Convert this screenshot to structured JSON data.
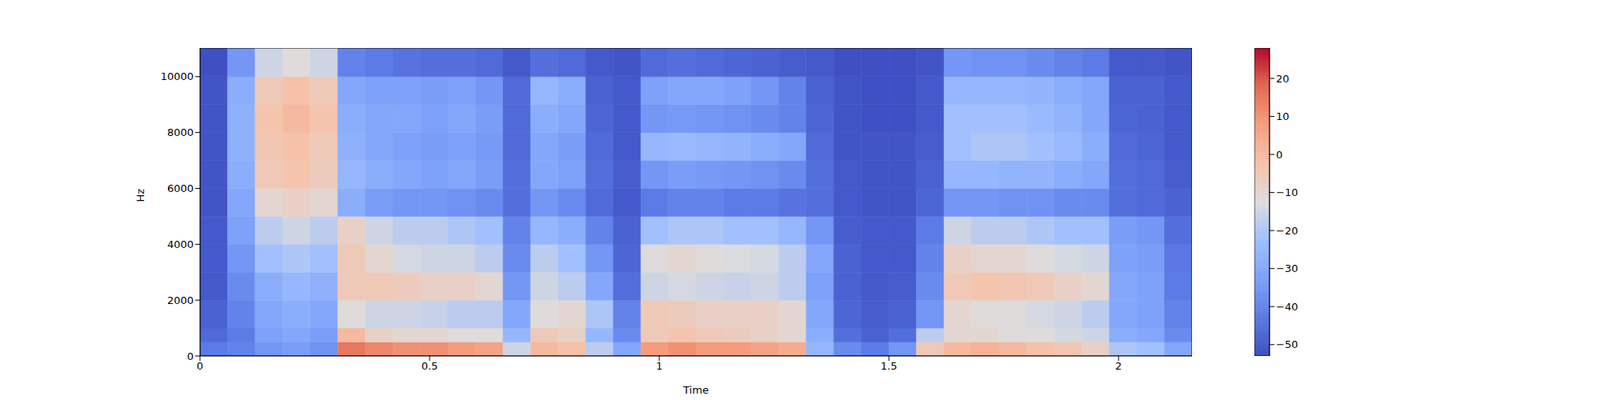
{
  "chart_data": {
    "type": "heatmap",
    "xlabel": "Time",
    "ylabel": "Hz",
    "xlim": [
      0,
      2.16
    ],
    "xticks": [
      0,
      0.5,
      1,
      1.5,
      2
    ],
    "ylim": [
      0,
      11025
    ],
    "yticks": [
      0,
      2000,
      4000,
      6000,
      8000,
      10000
    ],
    "x_edges": [
      0,
      0.06,
      0.12,
      0.18,
      0.24,
      0.3,
      0.36,
      0.42,
      0.48,
      0.54,
      0.6,
      0.66,
      0.72,
      0.78,
      0.84,
      0.9,
      0.96,
      1.02,
      1.08,
      1.14,
      1.2,
      1.26,
      1.32,
      1.38,
      1.44,
      1.5,
      1.56,
      1.62,
      1.68,
      1.74,
      1.8,
      1.86,
      1.92,
      1.98,
      2.04,
      2.1,
      2.16
    ],
    "y_edges": [
      0,
      500,
      1000,
      2000,
      3000,
      4000,
      5000,
      6000,
      7000,
      8000,
      9000,
      10000,
      11025
    ],
    "values": [
      [
        -42,
        -46,
        -48,
        -50,
        -50,
        -50,
        -51,
        -51,
        -51,
        -51,
        -51,
        -52
      ],
      [
        -40,
        -42,
        -40,
        -38,
        -35,
        -32,
        -30,
        -28,
        -27,
        -27,
        -28,
        -35
      ],
      [
        -35,
        -32,
        -30,
        -28,
        -22,
        -18,
        -10,
        -5,
        -4,
        -3,
        -5,
        -15
      ],
      [
        -33,
        -30,
        -28,
        -25,
        -20,
        -15,
        -8,
        -3,
        -2,
        0,
        -2,
        -12
      ],
      [
        -36,
        -33,
        -30,
        -27,
        -22,
        -18,
        -10,
        -6,
        -5,
        -3,
        -5,
        -15
      ],
      [
        15,
        0,
        -12,
        -5,
        -5,
        -8,
        -28,
        -25,
        -27,
        -28,
        -30,
        -40
      ],
      [
        12,
        -8,
        -15,
        -5,
        -10,
        -15,
        -33,
        -28,
        -30,
        -30,
        -32,
        -42
      ],
      [
        10,
        -10,
        -15,
        -6,
        -14,
        -18,
        -35,
        -30,
        -32,
        -30,
        -32,
        -44
      ],
      [
        10,
        -10,
        -16,
        -8,
        -15,
        -18,
        -35,
        -32,
        -33,
        -32,
        -33,
        -45
      ],
      [
        8,
        -12,
        -18,
        -8,
        -15,
        -20,
        -36,
        -30,
        -32,
        -30,
        -32,
        -45
      ],
      [
        6,
        -12,
        -18,
        -10,
        -18,
        -22,
        -38,
        -33,
        -34,
        -33,
        -35,
        -46
      ],
      [
        -15,
        -25,
        -30,
        -35,
        -38,
        -40,
        -45,
        -45,
        -46,
        -46,
        -46,
        -50
      ],
      [
        0,
        -5,
        -12,
        -15,
        -18,
        -25,
        -35,
        -30,
        -30,
        -28,
        -25,
        -45
      ],
      [
        -2,
        -8,
        -10,
        -18,
        -22,
        -28,
        -38,
        -32,
        -33,
        -30,
        -28,
        -46
      ],
      [
        -18,
        -25,
        -20,
        -30,
        -35,
        -40,
        -46,
        -45,
        -46,
        -47,
        -48,
        -50
      ],
      [
        -30,
        -38,
        -40,
        -45,
        -47,
        -48,
        -50,
        -49,
        -50,
        -50,
        -50,
        -51
      ],
      [
        8,
        -5,
        -5,
        -15,
        -12,
        -22,
        -42,
        -35,
        -25,
        -35,
        -32,
        -46
      ],
      [
        10,
        -3,
        -6,
        -14,
        -10,
        -20,
        -40,
        -33,
        -24,
        -34,
        -30,
        -45
      ],
      [
        8,
        -5,
        -8,
        -15,
        -12,
        -20,
        -40,
        -34,
        -25,
        -35,
        -30,
        -46
      ],
      [
        8,
        -6,
        -8,
        -16,
        -13,
        -22,
        -42,
        -35,
        -26,
        -36,
        -32,
        -47
      ],
      [
        6,
        -8,
        -8,
        -15,
        -14,
        -22,
        -42,
        -36,
        -28,
        -38,
        -35,
        -48
      ],
      [
        4,
        -10,
        -10,
        -18,
        -18,
        -25,
        -44,
        -38,
        -30,
        -40,
        -40,
        -49
      ],
      [
        -25,
        -28,
        -30,
        -32,
        -30,
        -35,
        -45,
        -45,
        -46,
        -47,
        -48,
        -50
      ],
      [
        -38,
        -45,
        -47,
        -48,
        -48,
        -49,
        -50,
        -50,
        -51,
        -51,
        -51,
        -52
      ],
      [
        -42,
        -48,
        -49,
        -50,
        -50,
        -50,
        -51,
        -51,
        -51,
        -52,
        -52,
        -52
      ],
      [
        -35,
        -45,
        -48,
        -49,
        -50,
        -50,
        -51,
        -51,
        -51,
        -52,
        -52,
        -52
      ],
      [
        -5,
        -18,
        -35,
        -38,
        -40,
        -42,
        -47,
        -48,
        -49,
        -50,
        -50,
        -51
      ],
      [
        0,
        -10,
        -10,
        -5,
        -8,
        -15,
        -35,
        -25,
        -22,
        -22,
        -25,
        -35
      ],
      [
        2,
        -10,
        -12,
        -3,
        -10,
        -18,
        -35,
        -25,
        -20,
        -22,
        -25,
        -36
      ],
      [
        0,
        -12,
        -12,
        -4,
        -10,
        -18,
        -36,
        -26,
        -20,
        -22,
        -25,
        -36
      ],
      [
        -2,
        -12,
        -14,
        -5,
        -12,
        -20,
        -36,
        -26,
        -22,
        -24,
        -26,
        -38
      ],
      [
        -4,
        -14,
        -15,
        -8,
        -14,
        -22,
        -38,
        -28,
        -24,
        -26,
        -28,
        -40
      ],
      [
        -8,
        -15,
        -18,
        -10,
        -15,
        -22,
        -38,
        -30,
        -28,
        -30,
        -30,
        -42
      ],
      [
        -20,
        -28,
        -30,
        -30,
        -32,
        -33,
        -45,
        -45,
        -46,
        -47,
        -48,
        -50
      ],
      [
        -22,
        -30,
        -32,
        -32,
        -33,
        -35,
        -46,
        -46,
        -47,
        -48,
        -48,
        -50
      ],
      [
        -30,
        -38,
        -40,
        -42,
        -43,
        -45,
        -48,
        -49,
        -50,
        -50,
        -50,
        -51
      ]
    ],
    "colorbar": {
      "range": [
        -53,
        28
      ],
      "ticks": [
        {
          "value": -50,
          "label": "−50"
        },
        {
          "value": -40,
          "label": "−40"
        },
        {
          "value": -30,
          "label": "−30"
        },
        {
          "value": -20,
          "label": "−20"
        },
        {
          "value": -10,
          "label": "−10"
        },
        0,
        10,
        20
      ]
    }
  }
}
